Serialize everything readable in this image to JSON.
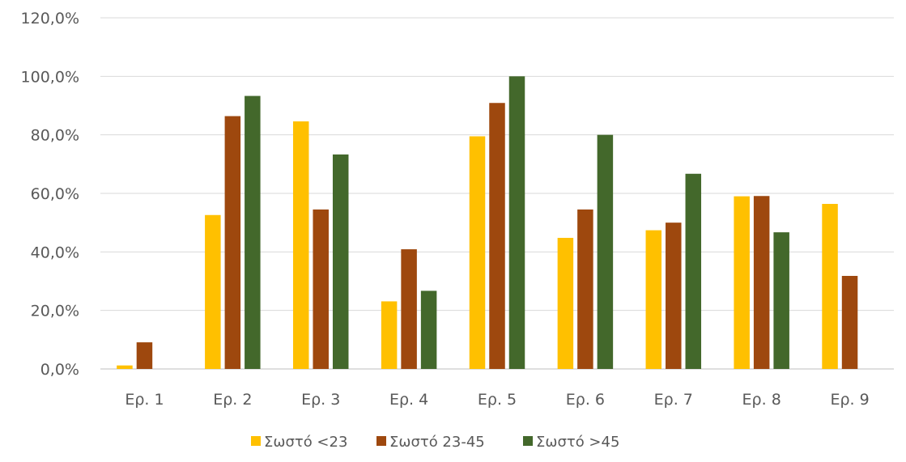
{
  "chart_data": {
    "type": "bar",
    "categories": [
      "Ερ. 1",
      "Ερ. 2",
      "Ερ. 3",
      "Ερ. 4",
      "Ερ. 5",
      "Ερ. 6",
      "Ερ. 7",
      "Ερ. 8",
      "Ερ. 9"
    ],
    "series": [
      {
        "name": "Σωστό <23",
        "color": "#FFC000",
        "values": [
          1.2,
          52.6,
          84.6,
          23.1,
          79.5,
          44.8,
          47.4,
          59.0,
          56.4
        ]
      },
      {
        "name": "Σωστό 23-45",
        "color": "#9E480E",
        "values": [
          9.1,
          86.4,
          54.5,
          40.9,
          90.9,
          54.5,
          50.0,
          59.1,
          31.8
        ]
      },
      {
        "name": "Σωστό >45",
        "color": "#43682B",
        "values": [
          0,
          93.3,
          73.3,
          26.7,
          100.0,
          80.0,
          66.7,
          46.7,
          0
        ]
      }
    ],
    "ylim": [
      0,
      120
    ],
    "yticks": [
      "0,0%",
      "20,0%",
      "40,0%",
      "60,0%",
      "80,0%",
      "100,0%",
      "120,0%"
    ],
    "grid": true,
    "legend_position": "bottom",
    "title": "",
    "xlabel": "",
    "ylabel": ""
  }
}
